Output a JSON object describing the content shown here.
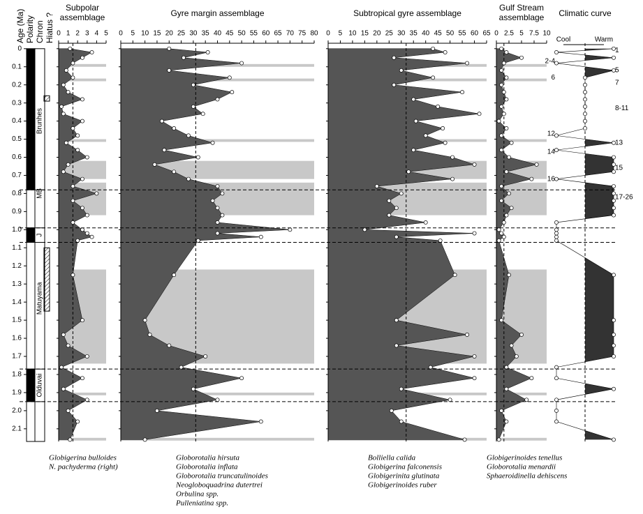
{
  "age_axis": {
    "label": "Age (Ma)",
    "ylim": [
      -0.03,
      2.17
    ],
    "yticks": [
      0,
      0.1,
      0.2,
      0.3,
      0.4,
      0.5,
      0.6,
      0.7,
      0.8,
      0.9,
      {
        "value": 1,
        "label": "1.0"
      },
      1.1,
      1.2,
      1.3,
      1.4,
      1.5,
      1.6,
      1.7,
      1.8,
      1.9,
      {
        "value": 2,
        "label": "2.0"
      },
      2.1
    ]
  },
  "column_headers": [
    "Polarity",
    "Chron",
    "Hiatus ?"
  ],
  "polarity": [
    {
      "from": 0,
      "to": 0.78,
      "color": "#000"
    },
    {
      "from": 0.78,
      "to": 0.99,
      "color": "#fff"
    },
    {
      "from": 0.99,
      "to": 1.07,
      "color": "#000"
    },
    {
      "from": 1.07,
      "to": 1.77,
      "color": "#fff"
    },
    {
      "from": 1.77,
      "to": 1.95,
      "color": "#000"
    },
    {
      "from": 1.95,
      "to": 2.17,
      "color": "#fff"
    }
  ],
  "chrons": [
    {
      "name": "Brunhes",
      "at": 0.4
    },
    {
      "name": "MB",
      "at": 0.8
    },
    {
      "name": "J",
      "at": 1.03
    },
    {
      "name": "Matuyama",
      "at": 1.38
    },
    {
      "name": "Olduvai",
      "at": 1.86
    }
  ],
  "hiatus": [
    {
      "from": 0.26,
      "to": 0.29
    },
    {
      "from": 1.1,
      "to": 1.45
    }
  ],
  "boundaries": [
    0.78,
    0.99,
    1.07,
    1.77,
    1.95
  ],
  "shaded": [
    [
      0.085,
      0.1
    ],
    [
      0.165,
      0.18
    ],
    [
      0.5,
      0.515
    ],
    [
      0.62,
      0.72
    ],
    [
      0.74,
      0.92
    ],
    [
      1.22,
      1.74
    ],
    [
      1.9,
      1.915
    ],
    [
      2.15,
      2.165
    ]
  ],
  "ages": [
    0,
    0.02,
    0.05,
    0.08,
    0.12,
    0.16,
    0.2,
    0.24,
    0.28,
    0.32,
    0.36,
    0.4,
    0.44,
    0.48,
    0.52,
    0.56,
    0.6,
    0.64,
    0.68,
    0.72,
    0.76,
    0.8,
    0.84,
    0.88,
    0.92,
    0.96,
    1.0,
    1.02,
    1.04,
    1.06,
    1.25,
    1.5,
    1.58,
    1.64,
    1.7,
    1.76,
    1.82,
    1.88,
    1.94,
    2.0,
    2.06,
    2.16
  ],
  "chart_data": [
    {
      "type": "area",
      "title": [
        "Subpolar",
        "assemblage"
      ],
      "xlim": [
        0,
        5
      ],
      "xticks": [
        0,
        1,
        2,
        3,
        4,
        5
      ],
      "reference": 1.5,
      "color": "#555555",
      "species": [
        "Globigerina bulloides",
        "N. pachyderma (right)"
      ],
      "values": [
        1.2,
        3.5,
        2.5,
        1.5,
        0.8,
        1.5,
        0.5,
        1,
        2.5,
        0.3,
        0.5,
        2.5,
        1.5,
        2,
        0.8,
        2,
        3,
        1,
        0.5,
        2.5,
        1.5,
        4,
        1.5,
        2.5,
        3,
        1.5,
        2.5,
        3,
        3.5,
        2,
        1.5,
        2.5,
        0.5,
        1,
        3,
        0.3,
        2.5,
        0.5,
        3,
        1,
        2,
        1.2
      ]
    },
    {
      "type": "area",
      "title": [
        "Gyre margin assemblage"
      ],
      "xlim": [
        0,
        80
      ],
      "xticks": [
        0,
        5,
        10,
        15,
        20,
        25,
        30,
        35,
        40,
        45,
        50,
        55,
        60,
        65,
        70,
        75,
        80
      ],
      "reference": 31,
      "color": "#555555",
      "species": [
        "Globorotalia hirsuta",
        "Globorotalia inflata",
        "Globorotalia truncatulinoides",
        "Neogloboquadrina dutertrei",
        "Orbulina spp.",
        "Pulleniatina spp."
      ],
      "values": [
        20,
        36,
        26,
        50,
        20,
        45,
        30,
        46,
        40,
        30,
        34,
        17,
        22,
        28,
        38,
        18,
        32,
        14,
        22,
        28,
        40,
        42,
        38,
        40,
        42,
        40,
        70,
        40,
        58,
        32,
        22,
        10,
        12,
        20,
        35,
        25,
        50,
        30,
        40,
        15,
        58,
        10
      ]
    },
    {
      "type": "area",
      "title": [
        "Subtropical gyre assemblage"
      ],
      "xlim": [
        0,
        65
      ],
      "xticks": [
        0,
        5,
        10,
        15,
        20,
        25,
        30,
        35,
        40,
        45,
        50,
        55,
        60,
        65
      ],
      "reference": 32,
      "color": "#555555",
      "species": [
        "Bolliella calida",
        "Globigerina falconensis",
        "Globigerinita glutinata",
        "Globigerinoides ruber"
      ],
      "values": [
        43,
        48,
        27,
        57,
        30,
        43,
        27,
        55,
        35,
        45,
        62,
        36,
        47,
        40,
        48,
        35,
        51,
        60,
        33,
        51,
        20,
        30,
        25,
        28,
        25,
        40,
        15,
        60,
        28,
        46,
        52,
        28,
        57,
        28,
        60,
        42,
        60,
        30,
        50,
        26,
        30,
        56
      ]
    },
    {
      "type": "area",
      "title": [
        "Gulf Stream",
        "assemblage"
      ],
      "xlim": [
        0,
        10
      ],
      "xticks": [
        0,
        2.5,
        5,
        7.5,
        10
      ],
      "reference": 1.5,
      "color": "#555555",
      "species": [
        "Globigerinoides tenellus",
        "Globorotalia menardii",
        "Sphaeroidinella dehiscens"
      ],
      "values": [
        1,
        2,
        5,
        1.5,
        1,
        2,
        1,
        1.5,
        2,
        1,
        1.5,
        0.5,
        2,
        1,
        3,
        1,
        2.5,
        8,
        2,
        7,
        1,
        2.5,
        1,
        3,
        2,
        1.5,
        0.5,
        1,
        1.5,
        0.5,
        2.5,
        1,
        5,
        3,
        4,
        2,
        7,
        2,
        6,
        1,
        2,
        0.5
      ]
    },
    {
      "type": "climate",
      "title": [
        "Climatic curve"
      ],
      "xlim": [
        -1,
        1
      ],
      "reference": 0,
      "color": "#333333",
      "ends": [
        "Cool",
        "Warm"
      ],
      "values": [
        1,
        -1,
        1,
        -1,
        1,
        0,
        0,
        0,
        0,
        0,
        0,
        0,
        0,
        -1,
        1,
        -1,
        1,
        1,
        1,
        -1,
        1,
        1,
        1,
        1,
        1,
        -1,
        -1,
        -1,
        -1,
        -1,
        1,
        1,
        1,
        1,
        1,
        -1,
        -1,
        1,
        -1,
        -1,
        -1,
        1
      ],
      "stage_labels": [
        {
          "label": "1",
          "age": 0.01,
          "side": "right"
        },
        {
          "label": "2-4",
          "age": 0.07,
          "side": "left"
        },
        {
          "label": "5",
          "age": 0.12,
          "side": "right"
        },
        {
          "label": "6",
          "age": 0.16,
          "side": "left"
        },
        {
          "label": "7",
          "age": 0.19,
          "side": "right"
        },
        {
          "label": "8-11",
          "age": 0.33,
          "side": "right"
        },
        {
          "label": "12",
          "age": 0.47,
          "side": "left"
        },
        {
          "label": "13",
          "age": 0.52,
          "side": "right"
        },
        {
          "label": "14",
          "age": 0.57,
          "side": "left"
        },
        {
          "label": "15",
          "age": 0.66,
          "side": "right"
        },
        {
          "label": "16",
          "age": 0.72,
          "side": "left"
        },
        {
          "label": "17-26",
          "age": 0.82,
          "side": "right"
        }
      ]
    }
  ]
}
